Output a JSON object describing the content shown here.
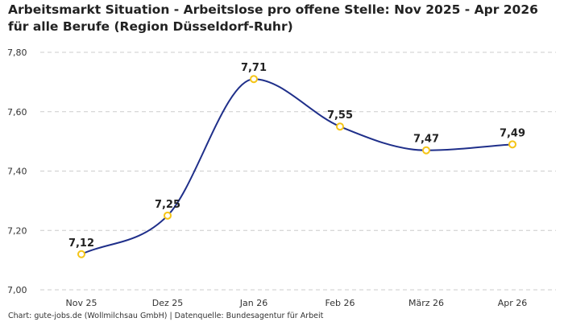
{
  "chart_data": {
    "type": "line",
    "title": "Arbeitsmarkt Situation - Arbeitslose pro offene Stelle: Nov 2025 - Apr 2026 für alle Berufe (Region Düsseldorf-Ruhr)",
    "xlabel": "",
    "ylabel": "",
    "categories": [
      "Nov 25",
      "Dez 25",
      "Jan 26",
      "Feb 26",
      "März 26",
      "Apr 26"
    ],
    "values": [
      7.12,
      7.25,
      7.71,
      7.55,
      7.47,
      7.49
    ],
    "data_labels": [
      "7,12",
      "7,25",
      "7,71",
      "7,55",
      "7,47",
      "7,49"
    ],
    "ylim": [
      7.0,
      7.8
    ],
    "yticks": [
      7.0,
      7.2,
      7.4,
      7.6,
      7.8
    ],
    "ytick_labels": [
      "7,00",
      "7,20",
      "7,40",
      "7,60",
      "7,80"
    ],
    "grid": true,
    "legend": "none",
    "line_color": "#1f2f8a",
    "marker_color": "#f5c518",
    "grid_color": "#cccccc"
  },
  "footer": "Chart: gute-jobs.de (Wollmilchsau GmbH) | Datenquelle: Bundesagentur für Arbeit"
}
